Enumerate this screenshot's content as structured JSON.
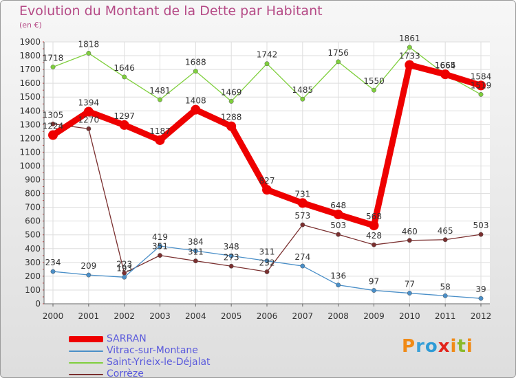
{
  "title": "Evolution du Montant de la Dette par Habitant",
  "subtitle": "(en €)",
  "brand": [
    "P",
    "r",
    "o",
    "x",
    "i",
    "t",
    "i"
  ],
  "brand_colors": [
    "#f08a16",
    "#3aa0d8",
    "#2e9bd6",
    "#e2241b",
    "#f08a16",
    "#8ab92a",
    "#f08a16"
  ],
  "chart_data": {
    "type": "line",
    "x": [
      "2000",
      "2001",
      "2002",
      "2003",
      "2004",
      "2005",
      "2006",
      "2007",
      "2008",
      "2009",
      "2010",
      "2011",
      "2012"
    ],
    "ylim": [
      0,
      1900
    ],
    "yticks": [
      "0",
      "100",
      "200",
      "300",
      "400",
      "500",
      "600",
      "700",
      "800",
      "900",
      "1000",
      "1100",
      "1200",
      "1300",
      "1400",
      "1500",
      "1600",
      "1700",
      "1800",
      "1900"
    ],
    "grid": true,
    "legend_position": "bottom-left",
    "series": [
      {
        "name": "SARRAN",
        "color": "#ee0000",
        "values": [
          1224,
          1394,
          1297,
          1187,
          1408,
          1288,
          827,
          731,
          648,
          568,
          1733,
          1665,
          1584
        ],
        "labels": [
          "1224",
          "1394",
          "1297",
          "1187",
          "1408",
          "1288",
          "827",
          "731",
          "648",
          "568",
          "1733",
          "1665",
          "1584"
        ]
      },
      {
        "name": "Vitrac-sur-Montane",
        "color": "#4a8fc8",
        "values": [
          234,
          209,
          193,
          419,
          384,
          348,
          311,
          274,
          136,
          97,
          77,
          58,
          39
        ],
        "labels": [
          "234",
          "209",
          "193",
          "419",
          "384",
          "348",
          "311",
          "274",
          "136",
          "97",
          "77",
          "58",
          "39"
        ]
      },
      {
        "name": "Saint-Yrieix-le-Déjalat",
        "color": "#7fcf3d",
        "values": [
          1718,
          1818,
          1646,
          1481,
          1688,
          1469,
          1742,
          1485,
          1756,
          1550,
          1861,
          1664,
          1519
        ],
        "labels": [
          "1718",
          "1818",
          "1646",
          "1481",
          "1688",
          "1469",
          "1742",
          "1485",
          "1756",
          "1550",
          "1861",
          "1664",
          "1519"
        ]
      },
      {
        "name": "Corrèze",
        "color": "#7a2f2f",
        "values": [
          1305,
          1270,
          223,
          351,
          311,
          273,
          232,
          573,
          503,
          428,
          460,
          465,
          503
        ],
        "labels": [
          "1305",
          "1270",
          "223",
          "351",
          "311",
          "273",
          "232",
          "573",
          "503",
          "428",
          "460",
          "465",
          "503"
        ]
      }
    ]
  }
}
